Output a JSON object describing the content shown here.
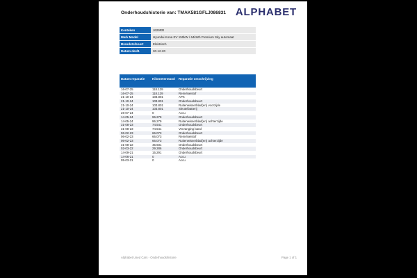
{
  "header": {
    "title": "Onderhoudshistorie van: TMAK581GFLJ086831",
    "logo": "ALPHABET"
  },
  "vehicle_info": {
    "rows": [
      {
        "label": "Kenteken",
        "value": "J629RR"
      },
      {
        "label": "Merk Model",
        "value": "Hyundai Kona EV 150kW / 64kWh Premium Sky automaat"
      },
      {
        "label": "Brandstofsoort",
        "value": "Elektrisch"
      },
      {
        "label": "Datum deel1",
        "value": "30-12-20"
      }
    ]
  },
  "maintenance_table": {
    "columns": [
      "Datum reparatie",
      "Kilometerstand",
      "Reparatie omschrijving"
    ],
    "rows": [
      [
        "16-07-25",
        "118.129",
        "Onderhoudsbeurt"
      ],
      [
        "16-07-25",
        "118.129",
        "Remvloeistof"
      ],
      [
        "21-10-24",
        "103.801",
        "APK"
      ],
      [
        "21-10-24",
        "103.801",
        "Onderhoudsbeurt"
      ],
      [
        "21-10-24",
        "103.801",
        "Ruitenwisserblad(en) voorzijde"
      ],
      [
        "21-10-24",
        "103.801",
        "Sleutelbatterij"
      ],
      [
        "26-07-24",
        "0",
        "Accu"
      ],
      [
        "14-05-24",
        "96.279",
        "Onderhoudsbeurt"
      ],
      [
        "14-05-24",
        "96.279",
        "Ruitenwisserblad(en) achterzijde"
      ],
      [
        "31-08-23",
        "74.541",
        "Onderhoudsbeurt"
      ],
      [
        "31-08-23",
        "74.541",
        "Vervanging band"
      ],
      [
        "06-02-23",
        "66.073",
        "Onderhoudsbeurt"
      ],
      [
        "06-02-23",
        "66.073",
        "Remvloeistof"
      ],
      [
        "06-02-23",
        "66.073",
        "Ruitenwisserblad(en) achterzijde"
      ],
      [
        "31-08-22",
        "45.931",
        "Onderhoudsbeurt"
      ],
      [
        "02-03-22",
        "29.286",
        "Onderhoudsbeurt"
      ],
      [
        "14-09-21",
        "15.291",
        "Onderhoudsbeurt"
      ],
      [
        "14-06-21",
        "0",
        "Accu"
      ],
      [
        "05-03-21",
        "0",
        "Accu"
      ]
    ]
  },
  "footer": {
    "left": "Alphabet  Used Cars - Onderhoudshistorie",
    "right": "Page 1 of 1"
  },
  "colors": {
    "table_blue": "#1164B4",
    "logo_navy": "#2B2F6E",
    "row_stripe": "#EDEFF4",
    "info_value_bg": "#E9E9E9",
    "footer_text": "#8C8C8C",
    "page_background": "#FFFFFF",
    "canvas_background": "#000000"
  }
}
